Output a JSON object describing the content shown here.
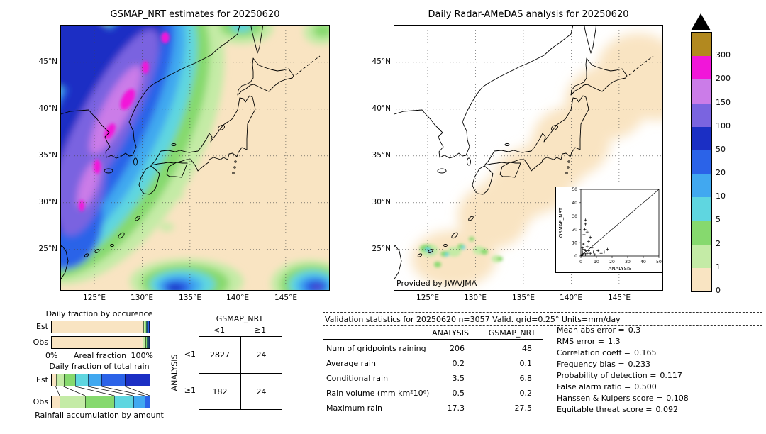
{
  "palette": {
    "paletan": "#f9e4c2",
    "palegreen": "#c4eba6",
    "green": "#86d96e",
    "cyan": "#5fd6e0",
    "lightblue": "#41a8f0",
    "blue": "#2b63e8",
    "darkblue": "#1b2fc4",
    "purple": "#7a64e0",
    "orchid": "#cb7ce8",
    "magenta": "#f116d9",
    "mustard": "#b2891f"
  },
  "colorbar": {
    "labels_top_to_bottom": [
      "300",
      "200",
      "150",
      "100",
      "50",
      "20",
      "10",
      "5",
      "2",
      "1",
      "0"
    ],
    "colors_top_to_bottom": [
      "mustard",
      "magenta",
      "orchid",
      "purple",
      "darkblue",
      "blue",
      "lightblue",
      "cyan",
      "green",
      "palegreen",
      "paletan"
    ],
    "levels_low_to_high": [
      0,
      1,
      2,
      5,
      10,
      20,
      50,
      100,
      150,
      200,
      300
    ],
    "overflow_marker": "black up-triangle above 300"
  },
  "chart_data": [
    {
      "id": "gsmap_map",
      "type": "heatmap",
      "title": "GSMAP_NRT estimates for 20250620",
      "units": "mm/day",
      "lat_ticks": [
        "45°N",
        "40°N",
        "35°N",
        "30°N",
        "25°N"
      ],
      "lon_ticks": [
        "125°E",
        "130°E",
        "135°E",
        "140°E",
        "145°E"
      ],
      "levels": [
        0,
        1,
        2,
        5,
        10,
        20,
        50,
        100,
        150,
        200,
        300
      ]
    },
    {
      "id": "radar_map",
      "type": "heatmap",
      "title": "Daily Radar-AMeDAS analysis for 20250620",
      "credit": "Provided by JWA/JMA",
      "units": "mm/day",
      "lat_ticks": [
        "45°N",
        "40°N",
        "35°N",
        "30°N",
        "25°N"
      ],
      "lon_ticks": [
        "125°E",
        "130°E",
        "135°E",
        "140°E",
        "145°E"
      ]
    },
    {
      "id": "inset_scatter",
      "type": "scatter",
      "xlabel": "ANALYSIS",
      "ylabel": "GSMAP_NRT",
      "xlim": [
        0,
        50
      ],
      "ylim": [
        0,
        50
      ],
      "diagonal_line": true,
      "tick_labels": [
        "0",
        "10",
        "20",
        "30",
        "40",
        "50"
      ],
      "points": [
        [
          0.5,
          0.5
        ],
        [
          1,
          1
        ],
        [
          1,
          3
        ],
        [
          1,
          6
        ],
        [
          1.5,
          9
        ],
        [
          2,
          12
        ],
        [
          2,
          16
        ],
        [
          2.5,
          20
        ],
        [
          3,
          24
        ],
        [
          3,
          27
        ],
        [
          2,
          2
        ],
        [
          3,
          4
        ],
        [
          4,
          2
        ],
        [
          4,
          7
        ],
        [
          5,
          4
        ],
        [
          5,
          11
        ],
        [
          6,
          2
        ],
        [
          7,
          6
        ],
        [
          8,
          3
        ],
        [
          9,
          1
        ],
        [
          11,
          4
        ],
        [
          13,
          2
        ],
        [
          15,
          3
        ],
        [
          17,
          5
        ],
        [
          3,
          1
        ],
        [
          6,
          14
        ],
        [
          4,
          18
        ],
        [
          2,
          5
        ]
      ]
    },
    {
      "id": "occurrence",
      "type": "bar",
      "title": "Daily fraction by occurence",
      "categories": [
        "Est",
        "Obs"
      ],
      "axis": {
        "left": "0%",
        "center": "Areal fraction",
        "right": "100%"
      },
      "units": "percent of gridpoints per rain class",
      "series": {
        "Est": [
          [
            "paletan",
            93.5
          ],
          [
            "palegreen",
            1.5
          ],
          [
            "green",
            1.2
          ],
          [
            "cyan",
            1.0
          ],
          [
            "lightblue",
            0.9
          ],
          [
            "blue",
            1.0
          ],
          [
            "darkblue",
            0.9
          ]
        ],
        "Obs": [
          [
            "paletan",
            93.0
          ],
          [
            "palegreen",
            2.6
          ],
          [
            "green",
            1.9
          ],
          [
            "cyan",
            1.3
          ],
          [
            "lightblue",
            0.7
          ],
          [
            "blue",
            0.5
          ]
        ]
      }
    },
    {
      "id": "totalrain",
      "type": "bar",
      "title": "Daily fraction of total rain",
      "caption": "Rainfall accumulation by amount",
      "categories": [
        "Est",
        "Obs"
      ],
      "units": "percent of total rain volume per rain class",
      "series": {
        "Est": [
          [
            "paletan",
            4
          ],
          [
            "palegreen",
            8
          ],
          [
            "green",
            12
          ],
          [
            "cyan",
            13
          ],
          [
            "lightblue",
            14
          ],
          [
            "blue",
            24
          ],
          [
            "darkblue",
            25
          ]
        ],
        "Obs": [
          [
            "paletan",
            8
          ],
          [
            "palegreen",
            26
          ],
          [
            "green",
            30
          ],
          [
            "cyan",
            19
          ],
          [
            "lightblue",
            12
          ],
          [
            "blue",
            5
          ]
        ]
      }
    },
    {
      "id": "contingency",
      "type": "table",
      "col_title": "GSMAP_NRT",
      "row_title": "ANALYSIS",
      "col_labels": [
        "<1",
        "≥1"
      ],
      "row_labels": [
        "<1",
        "≥1"
      ],
      "cells": [
        [
          "2827",
          "24"
        ],
        [
          "182",
          "24"
        ]
      ]
    },
    {
      "id": "validation",
      "type": "table",
      "title": "Validation statistics for 20250620  n=3057 Valid. grid=0.25° Units=mm/day",
      "col_headers": [
        "ANALYSIS",
        "GSMAP_NRT"
      ],
      "rows": [
        {
          "label": "Num of gridpoints raining",
          "analysis": "206",
          "gsmap": "48"
        },
        {
          "label": "Average rain",
          "analysis": "0.2",
          "gsmap": "0.1"
        },
        {
          "label": "Conditional rain",
          "analysis": "3.5",
          "gsmap": "6.8"
        },
        {
          "label": "Rain volume (mm km²10⁶)",
          "analysis": "0.5",
          "gsmap": "0.2"
        },
        {
          "label": "Maximum rain",
          "analysis": "17.3",
          "gsmap": "27.5"
        }
      ],
      "stats": [
        {
          "label": "Mean abs error =",
          "value": "0.3"
        },
        {
          "label": "RMS error =",
          "value": "1.3"
        },
        {
          "label": "Correlation coeff =",
          "value": "0.165"
        },
        {
          "label": "Frequency bias =",
          "value": "0.233"
        },
        {
          "label": "Probability of detection =",
          "value": "0.117"
        },
        {
          "label": "False alarm ratio =",
          "value": "0.500"
        },
        {
          "label": "Hanssen & Kuipers score =",
          "value": "0.108"
        },
        {
          "label": "Equitable threat score =",
          "value": "0.092"
        }
      ]
    }
  ]
}
